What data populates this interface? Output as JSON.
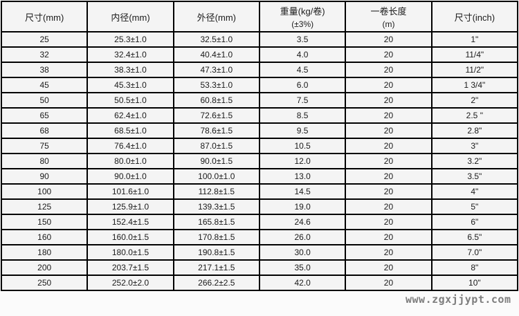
{
  "table": {
    "headers": [
      {
        "line1": "尺寸(mm)",
        "line2": ""
      },
      {
        "line1": "内径(mm)",
        "line2": ""
      },
      {
        "line1": "外径(mm)",
        "line2": ""
      },
      {
        "line1": "重量(kg/卷)",
        "line2": "(±3%)"
      },
      {
        "line1": "一卷长度",
        "line2": "(m)"
      },
      {
        "line1": "尺寸(inch)",
        "line2": ""
      }
    ],
    "rows": [
      [
        "25",
        "25.3±1.0",
        "32.5±1.0",
        "3.5",
        "20",
        "1\""
      ],
      [
        "32",
        "32.4±1.0",
        "40.4±1.0",
        "4.0",
        "20",
        "11/4\""
      ],
      [
        "38",
        "38.3±1.0",
        "47.3±1.0",
        "4.5",
        "20",
        "11/2\""
      ],
      [
        "45",
        "45.3±1.0",
        "53.3±1.0",
        "6.0",
        "20",
        "1 3/4\""
      ],
      [
        "50",
        "50.5±1.0",
        "60.8±1.5",
        "7.5",
        "20",
        "2\""
      ],
      [
        "65",
        "62.4±1.0",
        "72.6±1.5",
        "8.5",
        "20",
        "2.5 \""
      ],
      [
        "68",
        "68.5±1.0",
        "78.6±1.5",
        "9.5",
        "20",
        "2.8\""
      ],
      [
        "75",
        "76.4±1.0",
        "87.0±1.5",
        "10.5",
        "20",
        "3\""
      ],
      [
        "80",
        "80.0±1.0",
        "90.0±1.5",
        "12.0",
        "20",
        "3.2\""
      ],
      [
        "90",
        "90.0±1.0",
        "100.0±1.0",
        "13.0",
        "20",
        "3.5\""
      ],
      [
        "100",
        "101.6±1.0",
        "112.8±1.5",
        "14.5",
        "20",
        "4\""
      ],
      [
        "125",
        "125.9±1.0",
        "139.3±1.5",
        "19.0",
        "20",
        "5\""
      ],
      [
        "150",
        "152.4±1.5",
        "165.8±1.5",
        "24.6",
        "20",
        "6\""
      ],
      [
        "160",
        "160.0±1.5",
        "170.8±1.5",
        "26.0",
        "20",
        "6.5\""
      ],
      [
        "180",
        "180.0±1.5",
        "190.8±1.5",
        "30.0",
        "20",
        "7.0\""
      ],
      [
        "200",
        "203.7±1.5",
        "217.1±1.5",
        "35.0",
        "20",
        "8\""
      ],
      [
        "250",
        "252.0±2.0",
        "266.2±2.5",
        "42.0",
        "20",
        "10\""
      ]
    ]
  },
  "watermark": {
    "text": "www.zgxjjypt.com",
    "color": "#7e7e7e"
  },
  "colors": {
    "cell_background": "#f4f4f4",
    "border": "#000000",
    "text": "#1a1a1a"
  }
}
